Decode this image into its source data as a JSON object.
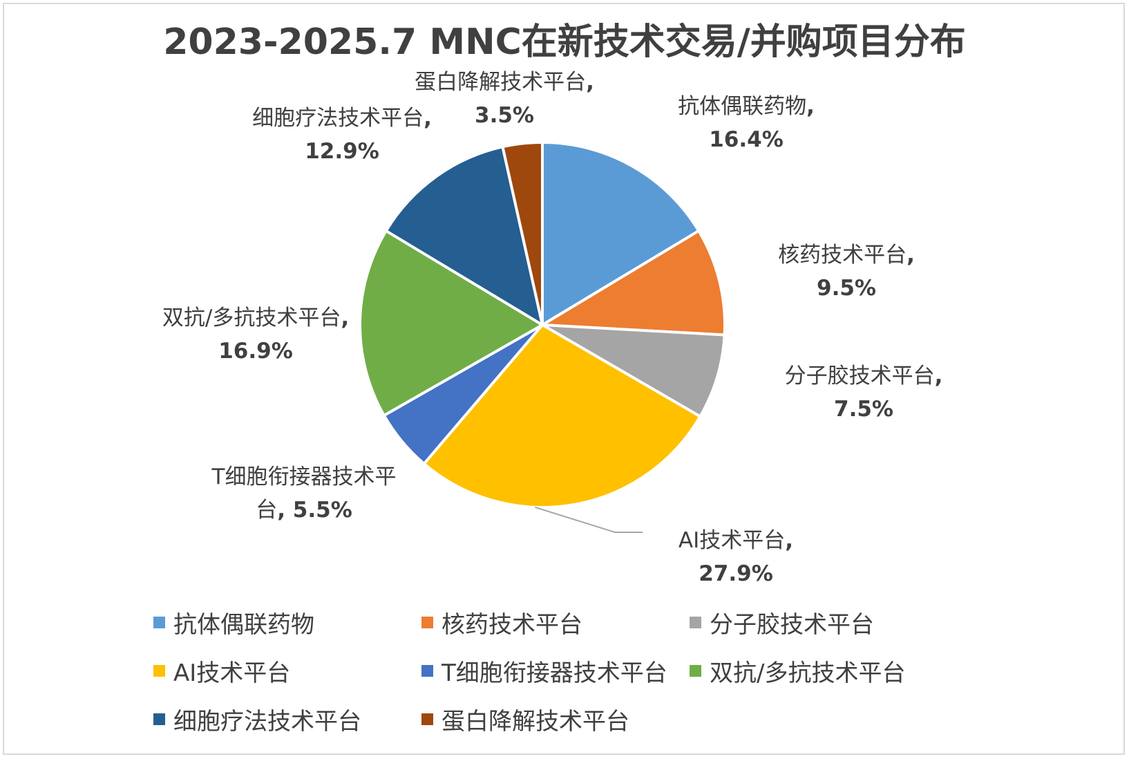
{
  "chart_data": {
    "type": "pie",
    "title": "2023-2025.7 MNC在新技术交易/并购项目分布",
    "categories": [
      "抗体偶联药物",
      "核药技术平台",
      "分子胶技术平台",
      "AI技术平台",
      "T细胞衔接器技术平台",
      "双抗/多抗技术平台",
      "细胞疗法技术平台",
      "蛋白降解技术平台"
    ],
    "values": [
      16.4,
      9.5,
      7.5,
      27.9,
      5.5,
      16.9,
      12.9,
      3.5
    ],
    "value_labels": [
      "16.4%",
      "9.5%",
      "7.5%",
      "27.9%",
      "5.5%",
      "16.9%",
      "12.9%",
      "3.5%"
    ],
    "colors": [
      "#5b9bd5",
      "#ed7d31",
      "#a5a5a5",
      "#ffc000",
      "#4472c4",
      "#70ad47",
      "#255e91",
      "#9e480e"
    ],
    "label_separator": ", ",
    "legend_position": "bottom",
    "start_angle_deg": 0,
    "direction": "clockwise"
  }
}
